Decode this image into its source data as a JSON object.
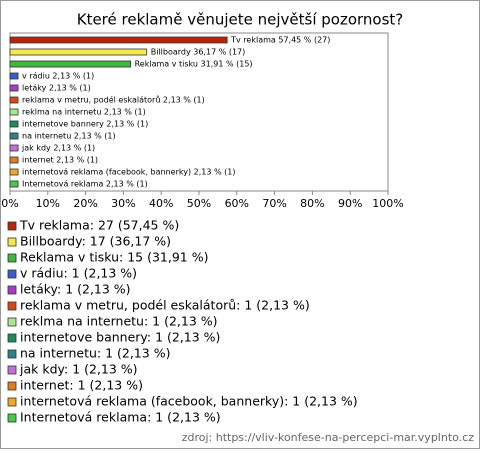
{
  "chart_data": {
    "type": "bar",
    "orientation": "horizontal",
    "title": "Které reklamě věnujete největší pozornost?",
    "values": [
      57.45,
      36.17,
      31.91,
      2.13,
      2.13,
      2.13,
      2.13,
      2.13,
      2.13,
      2.13,
      2.13,
      2.13,
      2.13
    ],
    "value_labels": [
      "Tv reklama 57,45 % (27)",
      "Billboardy 36,17 % (17)",
      "Reklama v tisku 31,91 % (15)",
      "v rádiu 2,13 % (1)",
      "letáky 2,13 % (1)",
      "reklama v metru, podél eskalátorů 2,13 % (1)",
      "reklma na internetu 2,13 % (1)",
      "internetove bannery 2,13 % (1)",
      "na internetu 2,13 % (1)",
      "jak kdy 2,13 % (1)",
      "internet 2,13 % (1)",
      "internetová reklama (facebook, bannerky) 2,13 % (1)",
      "Internetová reklama 2,13 % (1)"
    ],
    "legend_labels": [
      "Tv reklama: 27 (57,45 %)",
      "Billboardy: 17 (36,17 %)",
      "Reklama v tisku: 15 (31,91 %)",
      "v rádiu: 1 (2,13 %)",
      "letáky: 1 (2,13 %)",
      "reklama v metru, podél eskalátorů: 1 (2,13 %)",
      "reklma na internetu: 1 (2,13 %)",
      "internetove bannery: 1 (2,13 %)",
      "na internetu: 1 (2,13 %)",
      "jak kdy: 1 (2,13 %)",
      "internet: 1 (2,13 %)",
      "internetová reklama (facebook, bannerky): 1 (2,13 %)",
      "Internetová reklama: 1 (2,13 %)"
    ],
    "colors": [
      "#b8240c",
      "#f4ea4c",
      "#3cb83c",
      "#3c5ccc",
      "#a83cc8",
      "#d84818",
      "#a8e88c",
      "#1c8c5c",
      "#2c8488",
      "#c070d8",
      "#e07c20",
      "#f0a828",
      "#44cc44"
    ],
    "xlim": [
      0,
      100
    ],
    "xticks": [
      {
        "value": 0,
        "label": "0%"
      },
      {
        "value": 10,
        "label": "10%"
      },
      {
        "value": 20,
        "label": "20%"
      },
      {
        "value": 30,
        "label": "30%"
      },
      {
        "value": 40,
        "label": "40%"
      },
      {
        "value": 50,
        "label": "50%"
      },
      {
        "value": 60,
        "label": "60%"
      },
      {
        "value": 70,
        "label": "70%"
      },
      {
        "value": 80,
        "label": "80%"
      },
      {
        "value": 90,
        "label": "90%"
      },
      {
        "value": 100,
        "label": "100%"
      }
    ],
    "source": "zdroj: https://vliv-konfese-na-percepci-mar.vyplnto.cz"
  }
}
